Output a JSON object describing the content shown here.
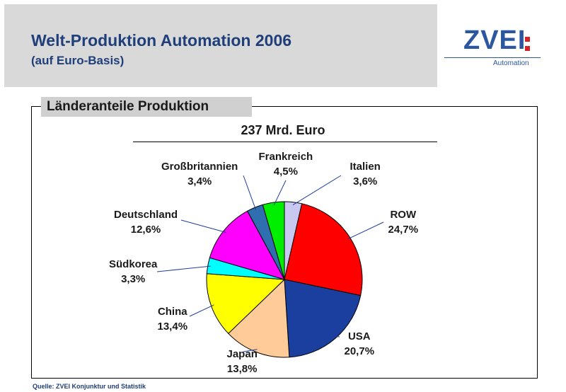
{
  "header": {
    "title": "Welt-Produktion Automation 2006",
    "subtitle": "(auf Euro-Basis)"
  },
  "logo": {
    "text": "ZVEI",
    "subtext": "Automation",
    "colon_color": "#d2232a"
  },
  "section": {
    "label": "Länderanteile Produktion"
  },
  "source": "Quelle: ZVEI Konjunktur und Statistik",
  "chart_data": {
    "type": "pie",
    "title": "237 Mrd. Euro",
    "slices": [
      {
        "name": "Italien",
        "label": "3,6%",
        "value": 3.6,
        "color": "#c8c8f0"
      },
      {
        "name": "ROW",
        "label": "24,7%",
        "value": 24.7,
        "color": "#ff0000"
      },
      {
        "name": "USA",
        "label": "20,7%",
        "value": 20.7,
        "color": "#1a3f9e"
      },
      {
        "name": "Japan",
        "label": "13,8%",
        "value": 13.8,
        "color": "#ffcc99"
      },
      {
        "name": "China",
        "label": "13,4%",
        "value": 13.4,
        "color": "#ffff00"
      },
      {
        "name": "Südkorea",
        "label": "3,3%",
        "value": 3.3,
        "color": "#00ffff"
      },
      {
        "name": "Deutschland",
        "label": "12,6%",
        "value": 12.6,
        "color": "#ff00ff"
      },
      {
        "name": "Großbritannien",
        "label": "3,4%",
        "value": 3.4,
        "color": "#2f6fb0"
      },
      {
        "name": "Frankreich",
        "label": "4,5%",
        "value": 4.5,
        "color": "#00ee00"
      }
    ]
  }
}
